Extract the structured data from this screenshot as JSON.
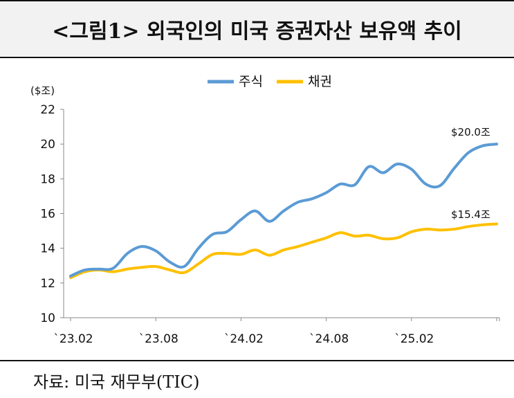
{
  "header": {
    "title": "<그림1> 외국인의 미국 증권자산 보유액 추이"
  },
  "footer": {
    "source": "자료: 미국 재무부(TIC)"
  },
  "chart_data": {
    "type": "line",
    "ylabel": "($조)",
    "ylim": [
      10,
      22
    ],
    "yticks": [
      10,
      12,
      14,
      16,
      18,
      20,
      22
    ],
    "x_labels": [
      "`23.02",
      "`23.08",
      "`24.02",
      "`24.08",
      "`25.02"
    ],
    "x_label_index": [
      0,
      6,
      12,
      18,
      24
    ],
    "months": 31,
    "series": [
      {
        "name": "주식",
        "color": "#5b9bd5",
        "values": [
          12.4,
          12.75,
          12.8,
          12.85,
          13.7,
          14.1,
          13.85,
          13.2,
          12.95,
          14.0,
          14.8,
          14.95,
          15.65,
          16.15,
          15.55,
          16.15,
          16.65,
          16.85,
          17.2,
          17.7,
          17.65,
          18.7,
          18.35,
          18.85,
          18.55,
          17.7,
          17.6,
          18.6,
          19.5,
          19.9,
          20.0
        ]
      },
      {
        "name": "채권",
        "color": "#ffc000",
        "values": [
          12.3,
          12.65,
          12.75,
          12.65,
          12.8,
          12.9,
          12.95,
          12.75,
          12.6,
          13.1,
          13.65,
          13.7,
          13.65,
          13.9,
          13.6,
          13.9,
          14.1,
          14.35,
          14.6,
          14.9,
          14.7,
          14.75,
          14.55,
          14.6,
          14.95,
          15.1,
          15.05,
          15.1,
          15.25,
          15.35,
          15.4
        ]
      }
    ],
    "end_labels": [
      "$20.0조",
      "$15.4조"
    ]
  }
}
